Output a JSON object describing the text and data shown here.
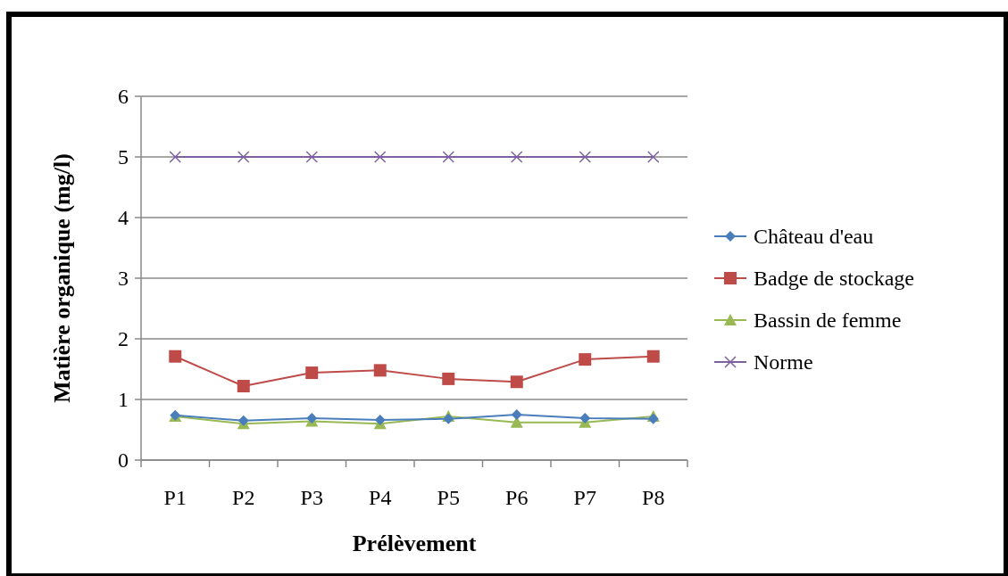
{
  "chart_data": {
    "type": "line",
    "xlabel": "Prélèvement",
    "ylabel": "Matière organique (mg/l)",
    "categories": [
      "P1",
      "P2",
      "P3",
      "P4",
      "P5",
      "P6",
      "P7",
      "P8"
    ],
    "series": [
      {
        "name": "Château d'eau",
        "color": "#4a7ebb",
        "marker": "diamond",
        "values": [
          0.74,
          0.65,
          0.69,
          0.66,
          0.68,
          0.75,
          0.69,
          0.68
        ]
      },
      {
        "name": "Badge de stockage",
        "color": "#be4b48",
        "marker": "square",
        "values": [
          1.71,
          1.22,
          1.44,
          1.48,
          1.34,
          1.29,
          1.66,
          1.71
        ]
      },
      {
        "name": "Bassin de femme",
        "color": "#98b954",
        "marker": "triangle",
        "values": [
          0.72,
          0.6,
          0.64,
          0.6,
          0.72,
          0.62,
          0.62,
          0.72
        ]
      },
      {
        "name": "Norme",
        "color": "#7d60a0",
        "marker": "cross",
        "values": [
          5,
          5,
          5,
          5,
          5,
          5,
          5,
          5
        ]
      }
    ],
    "ylim": [
      0,
      6
    ],
    "yticks": [
      0,
      1,
      2,
      3,
      4,
      5,
      6
    ],
    "grid": "y",
    "legend": "right"
  }
}
